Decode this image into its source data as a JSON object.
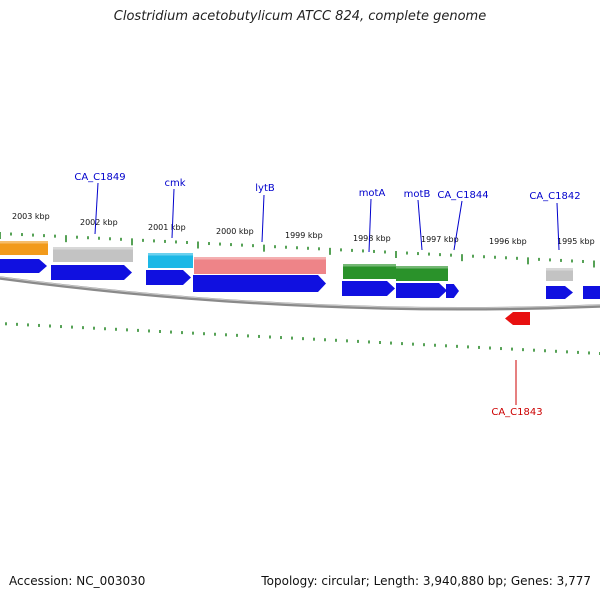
{
  "title": "Clostridium acetobutylicum ATCC 824, complete genome",
  "accession": "Accession: NC_003030",
  "summary": "Topology: circular; Length: 3,940,880 bp; Genes: 3,777",
  "kbp_ticks": [
    "2003 kbp",
    "2002 kbp",
    "2001 kbp",
    "2000 kbp",
    "1999 kbp",
    "1998 kbp",
    "1997 kbp",
    "1996 kbp",
    "1995 kbp"
  ],
  "gene_labels": [
    "CA_C1849",
    "cmk",
    "lytB",
    "motA",
    "motB",
    "CA_C1844",
    "CA_C1842",
    "CA_C1843"
  ],
  "colors": {
    "cds": "#1010e0",
    "orange": "#f29a1a",
    "grey": "#c3c3c3",
    "cyan": "#1cb8e6",
    "pink": "#ee8488",
    "green": "#2a922a",
    "red": "#e81010",
    "tick": "#2c8a2c",
    "label_blue": "#0000cc",
    "label_red": "#cc0000",
    "backbone": "#8a8a8a"
  }
}
